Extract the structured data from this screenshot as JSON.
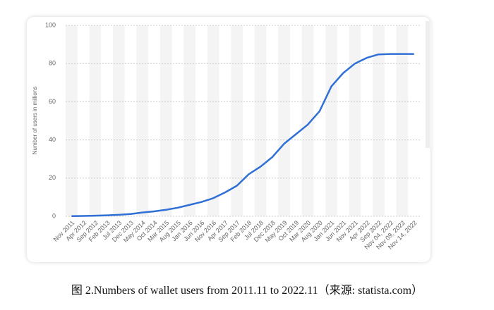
{
  "chart_data": {
    "type": "line",
    "y_label": "Number of users in millions",
    "categories": [
      "Nov 2011",
      "Apr 2012",
      "Sep 2012",
      "Feb 2013",
      "Jul 2013",
      "Dec 2013",
      "May 2014",
      "Oct 2014",
      "Mar 2015",
      "Aug 2015",
      "Jan 2016",
      "Jun 2016",
      "Nov 2016",
      "Apr 2017",
      "Sep 2017",
      "Feb 2018",
      "Jul 2018",
      "Dec 2018",
      "May 2019",
      "Oct 2019",
      "Mar 2020",
      "Aug 2020",
      "Jan 2021",
      "Jun 2021",
      "Nov 2021",
      "Apr 2022",
      "Sep 2022",
      "Nov 04, 2022",
      "Nov 09, 2022",
      "Nov 14, 2022"
    ],
    "series": [
      {
        "name": "Number of wallet users",
        "color": "#2f6fd6",
        "values": [
          0.1,
          0.2,
          0.3,
          0.5,
          0.8,
          1.2,
          2,
          2.6,
          3.4,
          4.5,
          6,
          7.5,
          9.5,
          12.5,
          16,
          22,
          26,
          31,
          38,
          43,
          48,
          55,
          68,
          75,
          80,
          83,
          84.8,
          85,
          85,
          85
        ]
      }
    ],
    "ylim": [
      0,
      100
    ],
    "yticks": [
      0,
      20,
      40,
      60,
      80,
      100
    ],
    "grid": true
  },
  "caption": "图 2.Numbers of wallet users from 2011.11  to 2022.11（来源: statista.com）"
}
